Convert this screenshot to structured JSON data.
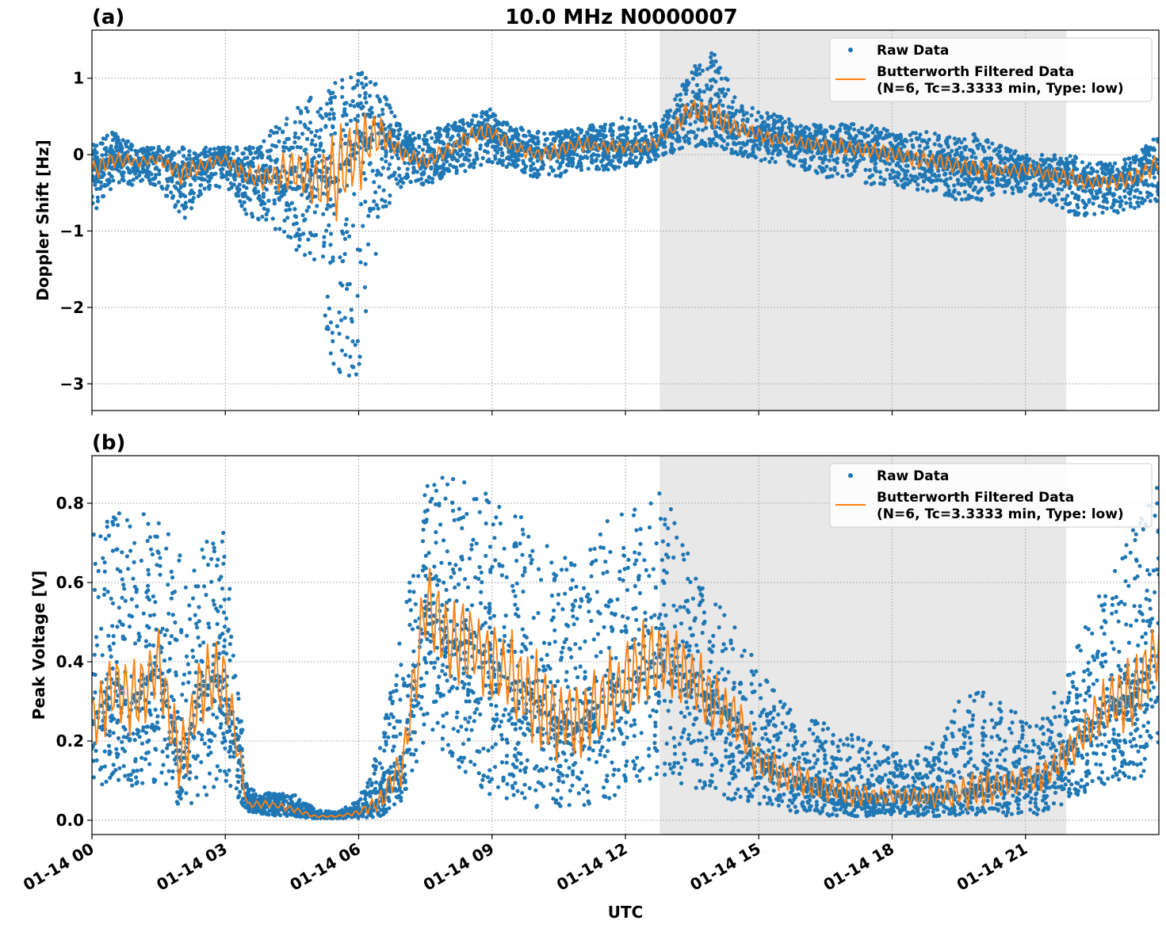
{
  "title": "10.0 MHz N0000007",
  "xlabel": "UTC",
  "x_ticks": [
    "01-14 00",
    "01-14 03",
    "01-14 06",
    "01-14 09",
    "01-14 12",
    "01-14 15",
    "01-14 18",
    "01-14 21"
  ],
  "legend": {
    "raw": "Raw Data",
    "filtered_1": "Butterworth Filtered Data",
    "filtered_2": "(N=6, Tc=3.3333 min, Type: low)"
  },
  "colors": {
    "raw": "#1f77b4",
    "filtered": "#ff7f0e",
    "shade": "#e8e8e8"
  },
  "chart_data": [
    {
      "type": "scatter",
      "panel_label": "(a)",
      "ylabel": "Doppler Shift [Hz]",
      "x_unit": "hours UTC on 01-14",
      "xlim": [
        0,
        24
      ],
      "ylim": [
        -3.35,
        1.63
      ],
      "y_ticks": [
        "1",
        "0",
        "−1",
        "−2",
        "−3"
      ],
      "y_tick_values": [
        1,
        0,
        -1,
        -2,
        -3
      ],
      "grid": true,
      "legend_placement": "top-right",
      "shaded_interval_hours": [
        12.77,
        21.92
      ],
      "x": [
        0,
        0.5,
        1,
        1.5,
        2,
        2.5,
        3,
        3.5,
        4,
        4.5,
        5,
        5.5,
        6,
        6.5,
        7,
        7.5,
        8,
        8.5,
        9,
        9.5,
        10,
        10.5,
        11,
        11.5,
        12,
        12.5,
        13,
        13.5,
        14,
        14.5,
        15,
        15.5,
        16,
        16.5,
        17,
        17.5,
        18,
        18.5,
        19,
        19.5,
        20,
        20.5,
        21,
        21.5,
        22,
        22.5,
        23,
        23.5,
        24
      ],
      "filtered": [
        -0.2,
        -0.05,
        -0.1,
        -0.05,
        -0.25,
        -0.15,
        -0.05,
        -0.3,
        -0.3,
        -0.2,
        -0.35,
        -0.3,
        0.1,
        0.3,
        0.0,
        -0.1,
        0.05,
        0.25,
        0.3,
        0.1,
        0.0,
        0.05,
        0.15,
        0.1,
        0.1,
        0.1,
        0.3,
        0.6,
        0.5,
        0.35,
        0.25,
        0.2,
        0.15,
        0.1,
        0.1,
        0.05,
        0.0,
        -0.05,
        -0.1,
        -0.15,
        -0.2,
        -0.2,
        -0.2,
        -0.25,
        -0.3,
        -0.35,
        -0.35,
        -0.3,
        -0.1
      ],
      "raw_min": [
        -0.8,
        -0.4,
        -0.4,
        -0.4,
        -0.9,
        -0.5,
        -0.4,
        -0.8,
        -0.9,
        -1.2,
        -1.6,
        -3.1,
        -3.0,
        -0.8,
        -0.4,
        -0.4,
        -0.3,
        -0.2,
        -0.1,
        -0.2,
        -0.3,
        -0.3,
        -0.2,
        -0.2,
        -0.2,
        -0.1,
        0.0,
        0.1,
        0.1,
        0.0,
        -0.1,
        -0.1,
        -0.2,
        -0.3,
        -0.3,
        -0.4,
        -0.4,
        -0.5,
        -0.5,
        -0.6,
        -0.6,
        -0.5,
        -0.6,
        -0.6,
        -0.8,
        -0.8,
        -0.8,
        -0.7,
        -0.6
      ],
      "raw_max": [
        0.2,
        0.3,
        0.1,
        0.1,
        0.1,
        0.1,
        0.1,
        0.1,
        0.3,
        0.6,
        0.8,
        1.0,
        1.1,
        0.9,
        0.3,
        0.3,
        0.4,
        0.5,
        0.6,
        0.4,
        0.3,
        0.3,
        0.4,
        0.4,
        0.5,
        0.4,
        0.6,
        1.15,
        1.4,
        0.7,
        0.6,
        0.5,
        0.4,
        0.4,
        0.4,
        0.4,
        0.3,
        0.3,
        0.3,
        0.2,
        0.3,
        0.1,
        0.0,
        0.0,
        0.0,
        -0.1,
        -0.1,
        0.0,
        0.3
      ]
    },
    {
      "type": "scatter",
      "panel_label": "(b)",
      "ylabel": "Peak Voltage [V]",
      "x_unit": "hours UTC on 01-14",
      "xlim": [
        0,
        24
      ],
      "ylim": [
        -0.036,
        0.92
      ],
      "y_ticks": [
        "0.0",
        "0.2",
        "0.4",
        "0.6",
        "0.8"
      ],
      "y_tick_values": [
        0,
        0.2,
        0.4,
        0.6,
        0.8
      ],
      "grid": true,
      "legend_placement": "top-right",
      "shaded_interval_hours": [
        12.77,
        21.92
      ],
      "x": [
        0,
        0.5,
        1,
        1.5,
        2,
        2.5,
        3,
        3.5,
        4,
        4.5,
        5,
        5.5,
        6,
        6.5,
        7,
        7.5,
        8,
        8.5,
        9,
        9.5,
        10,
        10.5,
        11,
        11.5,
        12,
        12.5,
        13,
        13.5,
        14,
        14.5,
        15,
        15.5,
        16,
        16.5,
        17,
        17.5,
        18,
        18.5,
        19,
        19.5,
        20,
        20.5,
        21,
        21.5,
        22,
        22.5,
        23,
        23.5,
        24
      ],
      "filtered": [
        0.25,
        0.35,
        0.3,
        0.4,
        0.15,
        0.35,
        0.35,
        0.04,
        0.04,
        0.03,
        0.01,
        0.01,
        0.02,
        0.05,
        0.15,
        0.55,
        0.45,
        0.45,
        0.4,
        0.35,
        0.3,
        0.25,
        0.25,
        0.3,
        0.35,
        0.4,
        0.4,
        0.35,
        0.3,
        0.25,
        0.15,
        0.12,
        0.1,
        0.08,
        0.07,
        0.06,
        0.06,
        0.06,
        0.06,
        0.07,
        0.08,
        0.09,
        0.1,
        0.12,
        0.18,
        0.25,
        0.3,
        0.32,
        0.45
      ],
      "raw_min": [
        0.08,
        0.1,
        0.08,
        0.1,
        0.03,
        0.05,
        0.1,
        0.02,
        0.01,
        0.01,
        0.005,
        0.005,
        0.005,
        0.01,
        0.05,
        0.2,
        0.15,
        0.1,
        0.05,
        0.05,
        0.03,
        0.03,
        0.03,
        0.05,
        0.05,
        0.1,
        0.1,
        0.08,
        0.06,
        0.05,
        0.03,
        0.02,
        0.02,
        0.01,
        0.01,
        0.01,
        0.01,
        0.01,
        0.01,
        0.01,
        0.01,
        0.01,
        0.01,
        0.02,
        0.05,
        0.08,
        0.1,
        0.1,
        0.15
      ],
      "raw_max": [
        0.78,
        0.78,
        0.79,
        0.75,
        0.72,
        0.7,
        0.75,
        0.08,
        0.07,
        0.07,
        0.03,
        0.02,
        0.05,
        0.2,
        0.5,
        0.87,
        0.87,
        0.85,
        0.83,
        0.8,
        0.78,
        0.65,
        0.7,
        0.75,
        0.78,
        0.86,
        0.8,
        0.65,
        0.6,
        0.48,
        0.4,
        0.3,
        0.27,
        0.25,
        0.22,
        0.2,
        0.18,
        0.17,
        0.2,
        0.3,
        0.33,
        0.3,
        0.25,
        0.3,
        0.4,
        0.55,
        0.65,
        0.75,
        0.85
      ]
    }
  ]
}
